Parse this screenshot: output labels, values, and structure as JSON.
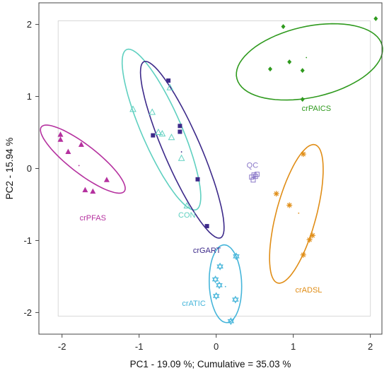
{
  "chart_data": {
    "type": "scatter",
    "xlabel": "PC1 - 19.09 %; Cumulative = 35.03 %",
    "ylabel": "PC2 - 15.94 %",
    "xlim": [
      -2.3,
      2.15
    ],
    "ylim": [
      -2.3,
      2.3
    ],
    "xticks": [
      -2,
      -1,
      0,
      1,
      2
    ],
    "yticks": [
      -2,
      -1,
      0,
      1,
      2
    ],
    "grid": false,
    "reference_box": {
      "x": [
        -2.05,
        2.0
      ],
      "y": [
        -2.05,
        2.05
      ]
    },
    "series": [
      {
        "name": "crPFAS",
        "color": "#b5319f",
        "marker": "triangle-filled",
        "points": [
          [
            -2.02,
            0.47
          ],
          [
            -2.02,
            0.4
          ],
          [
            -1.92,
            0.23
          ],
          [
            -1.75,
            0.33
          ],
          [
            -1.7,
            -0.3
          ],
          [
            -1.6,
            -0.32
          ],
          [
            -1.42,
            -0.16
          ]
        ],
        "centroid": [
          -1.78,
          0.04
        ],
        "ellipse": {
          "cx": -1.73,
          "cy": 0.13,
          "rx": 0.7,
          "ry": 0.19,
          "angle": -40
        },
        "label_pos": [
          -1.6,
          -0.72
        ]
      },
      {
        "name": "CON",
        "color": "#5fd0c0",
        "marker": "triangle-open",
        "points": [
          [
            -1.08,
            0.82
          ],
          [
            -0.83,
            0.78
          ],
          [
            -0.75,
            0.5
          ],
          [
            -0.7,
            0.48
          ],
          [
            -0.6,
            1.12
          ],
          [
            -0.58,
            0.43
          ],
          [
            -0.45,
            0.14
          ],
          [
            -0.38,
            -0.52
          ]
        ],
        "centroid": [
          -0.7,
          0.47
        ],
        "ellipse": {
          "cx": -0.71,
          "cy": 0.54,
          "rx": 1.2,
          "ry": 0.26,
          "angle": 112
        },
        "label_pos": [
          -0.38,
          -0.68
        ]
      },
      {
        "name": "crGART",
        "color": "#3d2a8a",
        "marker": "square-filled",
        "points": [
          [
            -0.62,
            1.22
          ],
          [
            -0.82,
            0.46
          ],
          [
            -0.47,
            0.59
          ],
          [
            -0.47,
            0.51
          ],
          [
            -0.24,
            -0.15
          ],
          [
            -0.12,
            -0.8
          ]
        ],
        "centroid": [
          -0.45,
          0.23
        ],
        "ellipse": {
          "cx": -0.44,
          "cy": 0.26,
          "rx": 1.32,
          "ry": 0.24,
          "angle": 112
        },
        "label_pos": [
          -0.12,
          -1.17
        ]
      },
      {
        "name": "QC",
        "color": "#8a78c8",
        "marker": "square-open",
        "points": [
          [
            0.46,
            -0.12
          ],
          [
            0.49,
            -0.09
          ],
          [
            0.51,
            -0.11
          ],
          [
            0.48,
            -0.16
          ],
          [
            0.53,
            -0.08
          ]
        ],
        "centroid": [
          0.49,
          -0.11
        ],
        "label_pos": [
          0.47,
          0.01
        ]
      },
      {
        "name": "crPAICS",
        "color": "#2f9a1e",
        "marker": "diamond-filled",
        "points": [
          [
            0.87,
            1.97
          ],
          [
            2.07,
            2.08
          ],
          [
            0.7,
            1.38
          ],
          [
            0.95,
            1.48
          ],
          [
            1.12,
            1.36
          ],
          [
            1.12,
            0.96
          ]
        ],
        "centroid": [
          1.17,
          1.54
        ],
        "ellipse": {
          "cx": 1.21,
          "cy": 1.48,
          "rx": 0.97,
          "ry": 0.49,
          "angle": 14
        },
        "label_pos": [
          1.3,
          0.8
        ]
      },
      {
        "name": "crADSL",
        "color": "#e08d16",
        "marker": "asterisk",
        "points": [
          [
            1.13,
            0.2
          ],
          [
            0.78,
            -0.35
          ],
          [
            0.95,
            -0.51
          ],
          [
            1.25,
            -0.93
          ],
          [
            1.21,
            -0.99
          ],
          [
            1.13,
            -1.2
          ]
        ],
        "centroid": [
          1.07,
          -0.62
        ],
        "ellipse": {
          "cx": 1.04,
          "cy": -0.63,
          "rx": 0.99,
          "ry": 0.26,
          "angle": 76
        },
        "label_pos": [
          1.2,
          -1.72
        ]
      },
      {
        "name": "crATIC",
        "color": "#45b5da",
        "marker": "star6-open",
        "points": [
          [
            0.26,
            -1.22
          ],
          [
            0.05,
            -1.36
          ],
          [
            -0.01,
            -1.54
          ],
          [
            0.04,
            -1.62
          ],
          [
            0.0,
            -1.77
          ],
          [
            0.25,
            -1.82
          ],
          [
            0.19,
            -2.12
          ]
        ],
        "centroid": [
          0.12,
          -1.64
        ],
        "ellipse": {
          "cx": 0.12,
          "cy": -1.6,
          "rx": 0.54,
          "ry": 0.21,
          "angle": 92
        },
        "label_pos": [
          -0.29,
          -1.91
        ]
      }
    ]
  }
}
